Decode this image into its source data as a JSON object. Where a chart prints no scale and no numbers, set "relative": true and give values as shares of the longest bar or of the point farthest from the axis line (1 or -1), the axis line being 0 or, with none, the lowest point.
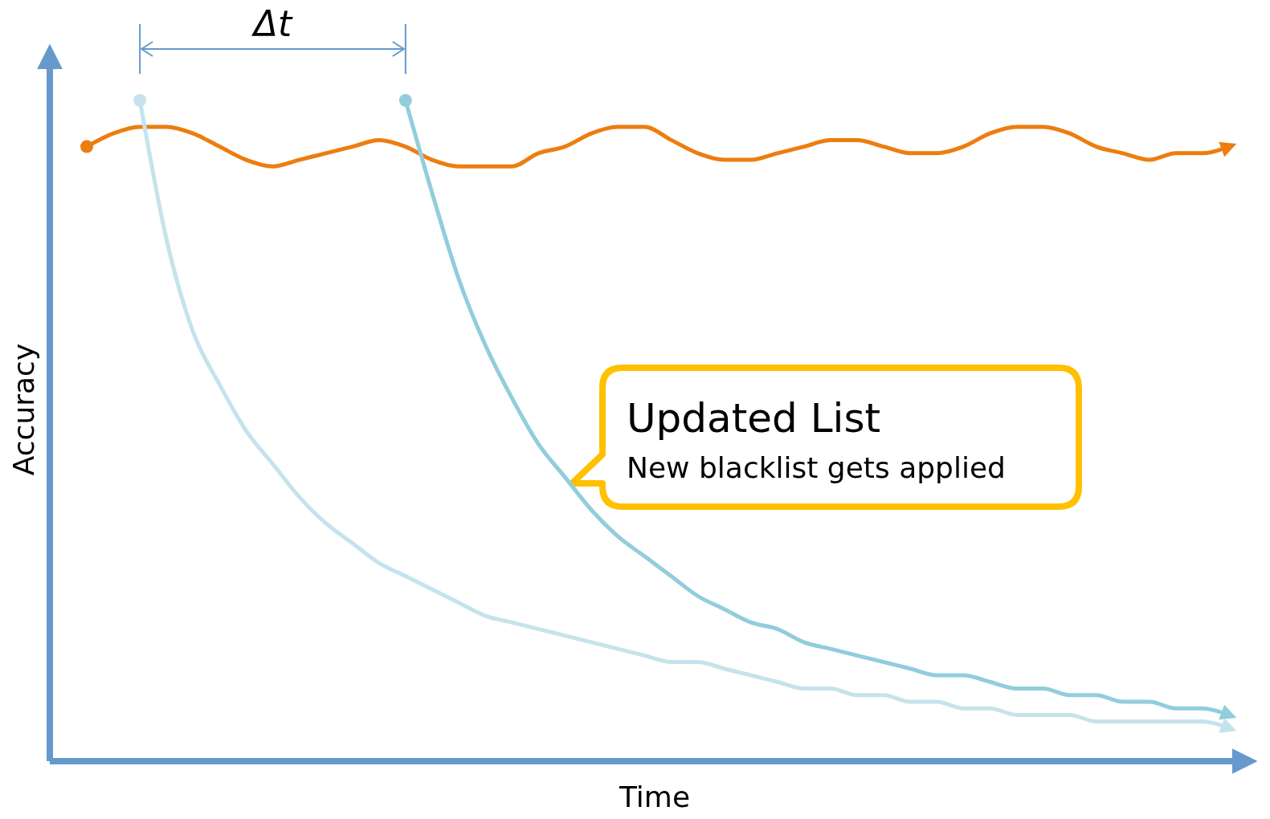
{
  "chart_data": {
    "type": "line",
    "relative": true,
    "xlabel": "Time",
    "ylabel": "Accuracy",
    "annotations": [
      "Δt",
      "Updated List",
      "New blacklist gets applied"
    ],
    "categories": [
      null,
      null,
      null,
      null,
      null,
      null,
      null,
      null,
      null,
      null,
      null,
      null,
      null,
      null,
      null,
      null,
      null,
      null,
      null,
      null,
      null,
      null,
      null,
      null,
      null,
      null,
      null,
      null,
      null,
      null,
      null,
      null,
      null,
      null,
      null,
      null,
      null,
      null,
      null,
      null,
      null,
      null,
      null,
      null
    ],
    "series": [
      {
        "color": "#ed7d10",
        "values": [
          0.93,
          0.95,
          0.96,
          0.96,
          0.95,
          0.93,
          0.91,
          0.9,
          0.91,
          0.92,
          0.93,
          0.94,
          0.93,
          0.91,
          0.9,
          0.9,
          0.9,
          0.92,
          0.93,
          0.95,
          0.96,
          0.96,
          0.94,
          0.92,
          0.91,
          0.91,
          0.92,
          0.93,
          0.94,
          0.94,
          0.93,
          0.92,
          0.92,
          0.93,
          0.95,
          0.96,
          0.96,
          0.95,
          0.93,
          0.92,
          0.91,
          0.92,
          0.92,
          0.93
        ]
      },
      {
        "color": "#c5e3ec",
        "values": [
          null,
          null,
          1,
          0.79,
          0.65,
          0.57,
          0.5,
          0.45,
          0.4,
          0.36,
          0.33,
          0.3,
          0.28,
          0.26,
          0.24,
          0.22,
          0.21,
          0.2,
          0.19,
          0.18,
          0.17,
          0.16,
          0.15,
          0.15,
          0.14,
          0.13,
          0.12,
          0.11,
          0.11,
          0.1,
          0.1,
          0.09,
          0.09,
          0.08,
          0.08,
          0.07,
          0.07,
          0.07,
          0.06,
          0.06,
          0.06,
          0.06,
          0.06,
          0.05
        ]
      },
      {
        "color": "#92cddc",
        "values": [
          null,
          null,
          null,
          null,
          null,
          null,
          null,
          null,
          null,
          null,
          null,
          null,
          1,
          0.86,
          0.73,
          0.63,
          0.55,
          0.48,
          0.43,
          0.38,
          0.34,
          0.31,
          0.28,
          0.25,
          0.23,
          0.21,
          0.2,
          0.18,
          0.17,
          0.16,
          0.15,
          0.14,
          0.13,
          0.13,
          0.12,
          0.11,
          0.11,
          0.1,
          0.1,
          0.09,
          0.09,
          0.08,
          0.08,
          0.07
        ]
      }
    ]
  }
}
